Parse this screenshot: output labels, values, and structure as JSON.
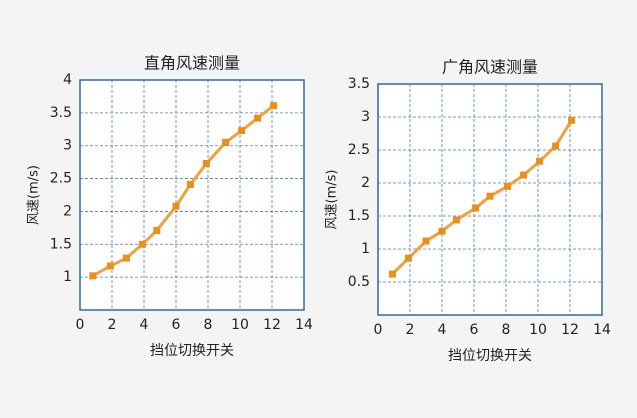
{
  "chart_data": [
    {
      "type": "line",
      "title": "直角风速测量",
      "xlabel": "挡位切换开关",
      "ylabel": "风速(m/s)",
      "x": [
        0.8,
        1.9,
        2.9,
        3.9,
        4.8,
        6,
        6.9,
        7.9,
        9.1,
        10.1,
        11.1,
        12.1
      ],
      "values": [
        1.02,
        1.17,
        1.29,
        1.5,
        1.71,
        2.08,
        2.41,
        2.73,
        3.05,
        3.23,
        3.42,
        3.61
      ],
      "color": "#f0a040",
      "marker_color": "#e8901a",
      "xlim": [
        0,
        14
      ],
      "xticks": [
        0,
        2,
        4,
        6,
        8,
        10,
        12,
        14
      ],
      "ylim": [
        0.5,
        4
      ],
      "yticks": [
        1,
        1.5,
        2,
        2.5,
        3,
        3.5,
        4
      ],
      "grid": true
    },
    {
      "type": "line",
      "title": "广角风速测量",
      "xlabel": "挡位切换开关",
      "ylabel": "风速(m/s)",
      "x": [
        0.9,
        1.9,
        3,
        4,
        4.9,
        6.1,
        7,
        8.1,
        9.1,
        10.1,
        11.1,
        12.1
      ],
      "values": [
        0.62,
        0.86,
        1.12,
        1.27,
        1.44,
        1.62,
        1.8,
        1.95,
        2.12,
        2.33,
        2.56,
        2.95
      ],
      "color": "#f0a040",
      "marker_color": "#e8901a",
      "xlim": [
        0,
        14
      ],
      "xticks": [
        0,
        2,
        4,
        6,
        8,
        10,
        12,
        14
      ],
      "ylim": [
        0,
        3.5
      ],
      "yticks": [
        0.5,
        1,
        1.5,
        2,
        2.5,
        3,
        3.5
      ],
      "grid": true
    }
  ]
}
